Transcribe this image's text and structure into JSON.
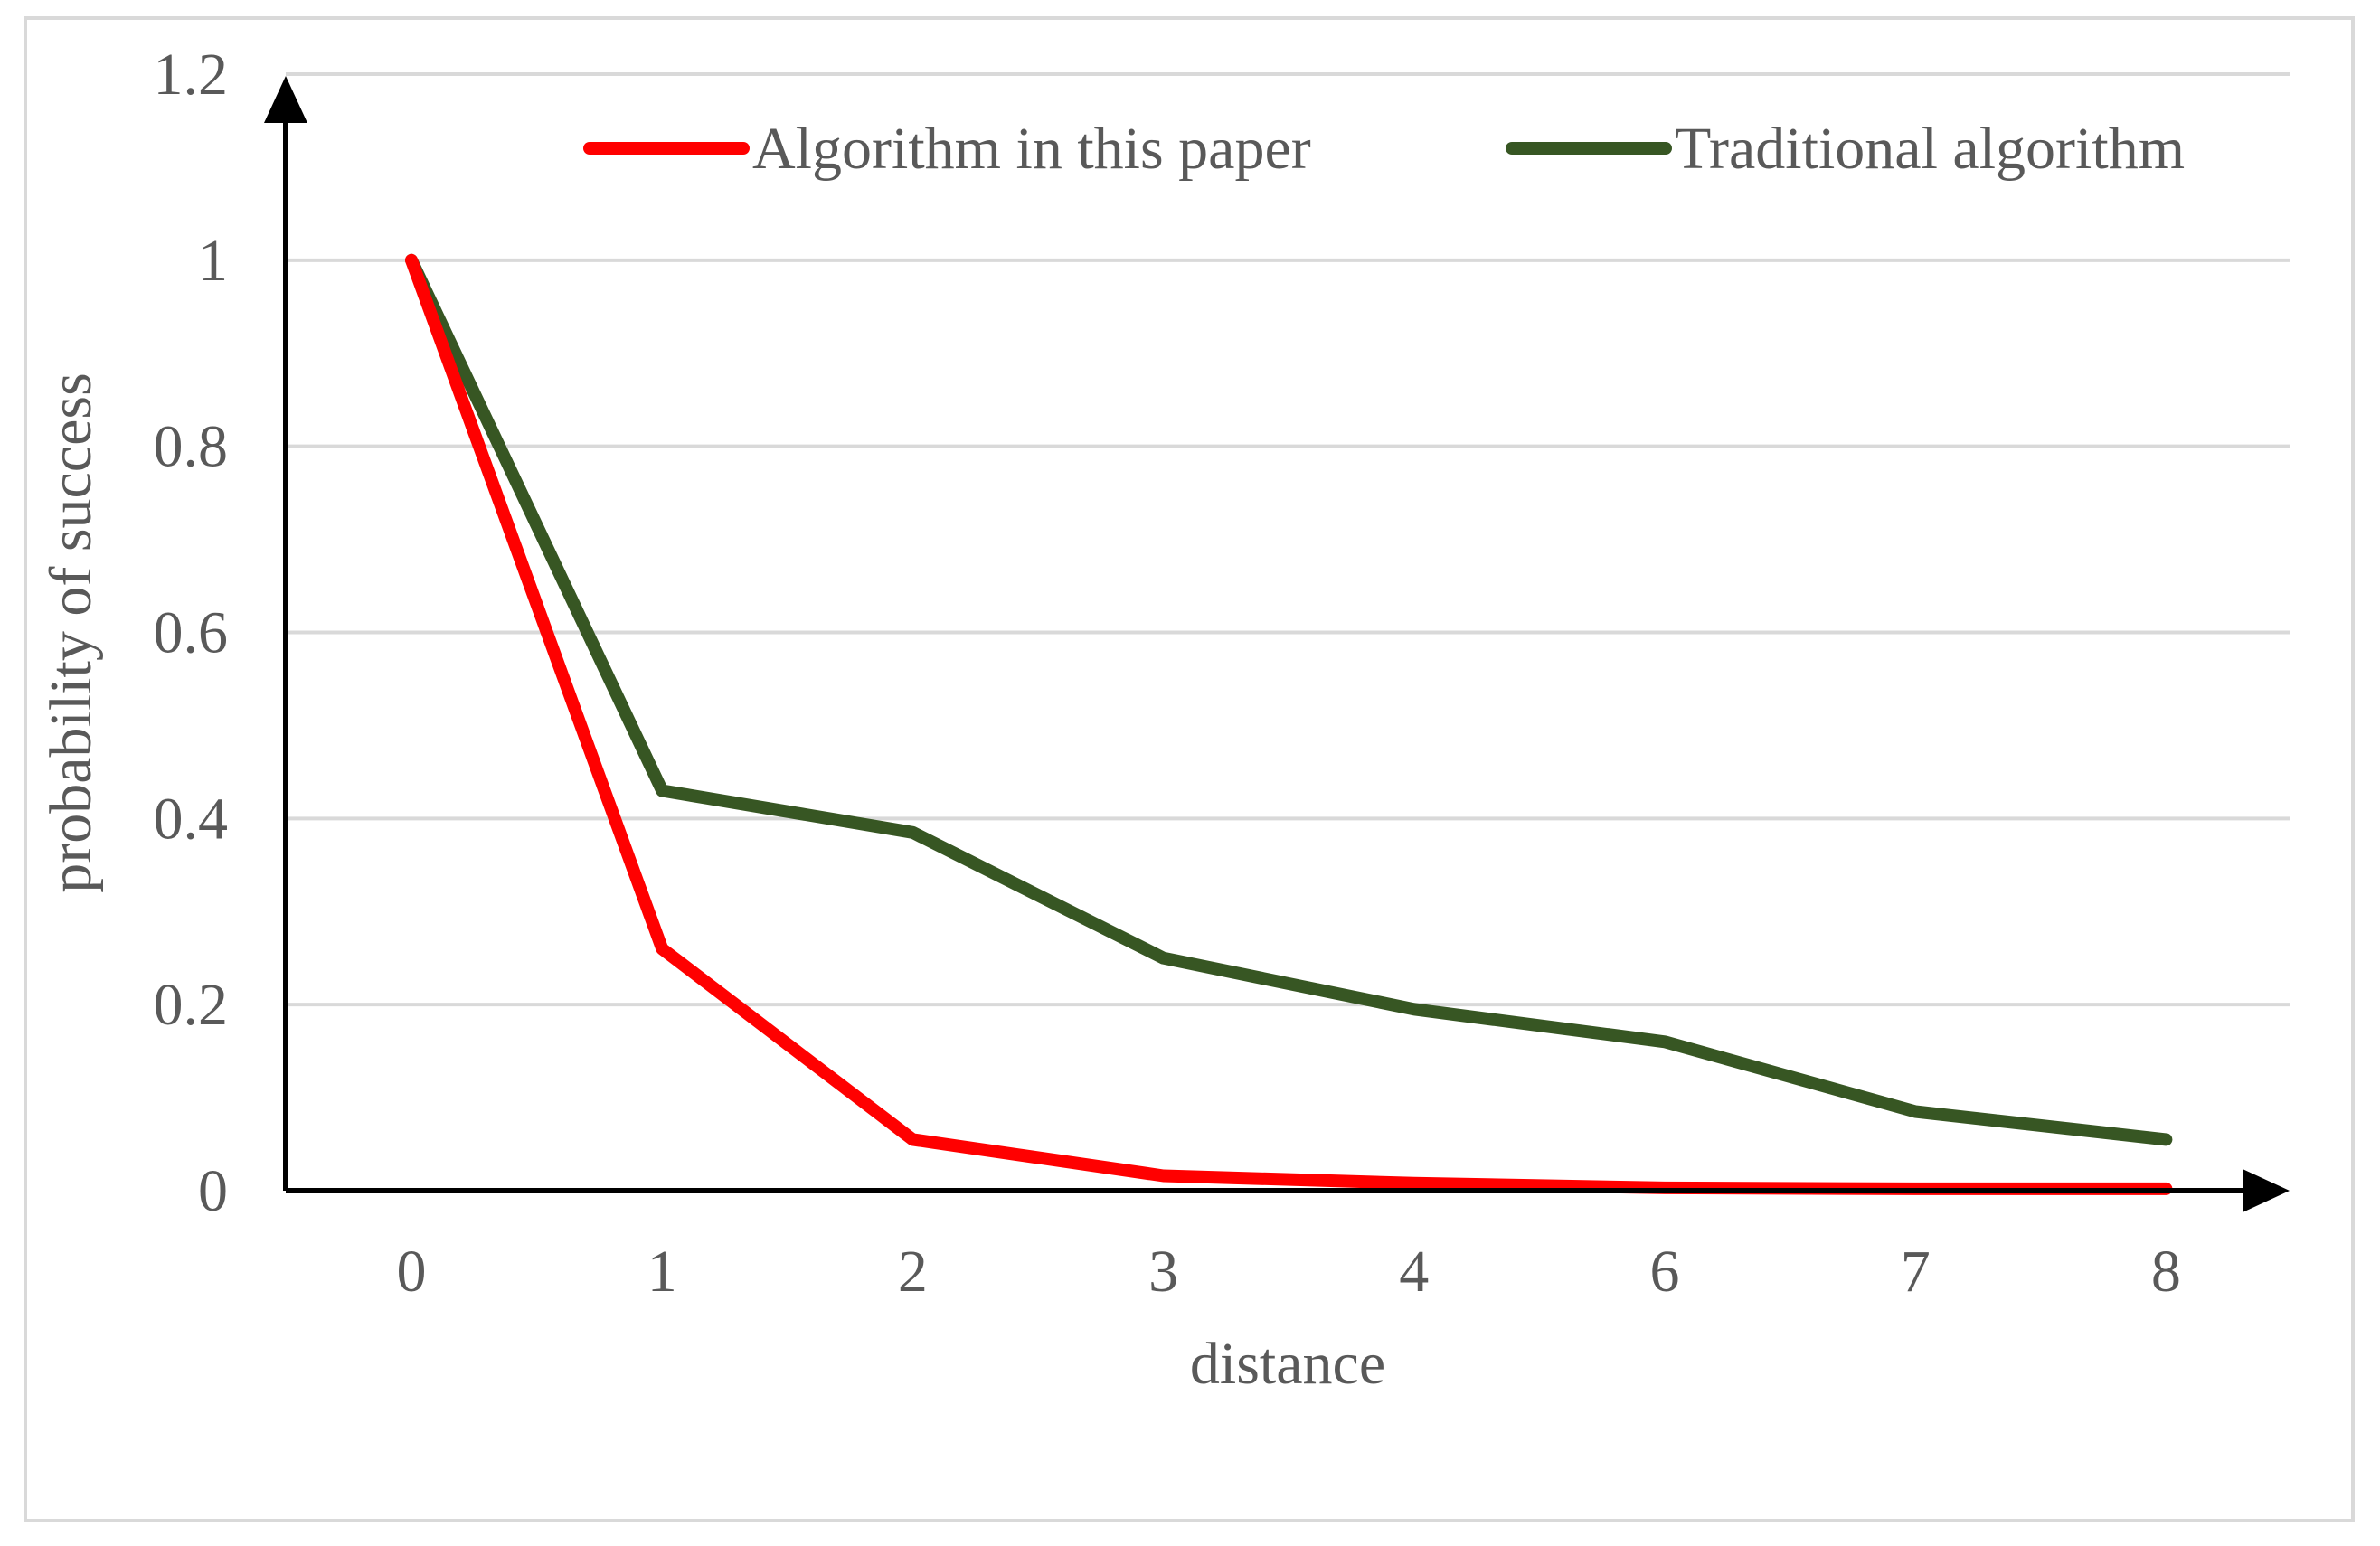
{
  "chart_data": {
    "type": "line",
    "title": "",
    "xlabel": "distance",
    "ylabel": "probability of success",
    "categories": [
      "0",
      "1",
      "2",
      "3",
      "4",
      "6",
      "7",
      "8"
    ],
    "ylim": [
      0,
      1.2
    ],
    "yticks": [
      "0",
      "0.2",
      "0.4",
      "0.6",
      "0.8",
      "1",
      "1.2"
    ],
    "grid": "horizontal",
    "legend_position": "top",
    "series": [
      {
        "name": "Algorithm in this paper",
        "color": "#ff0000",
        "values": [
          1.0,
          0.26,
          0.055,
          0.016,
          0.008,
          0.003,
          0.002,
          0.002
        ]
      },
      {
        "name": "Traditional algorithm",
        "color": "#375623",
        "values": [
          1.0,
          0.43,
          0.385,
          0.25,
          0.195,
          0.16,
          0.085,
          0.055
        ]
      }
    ]
  }
}
